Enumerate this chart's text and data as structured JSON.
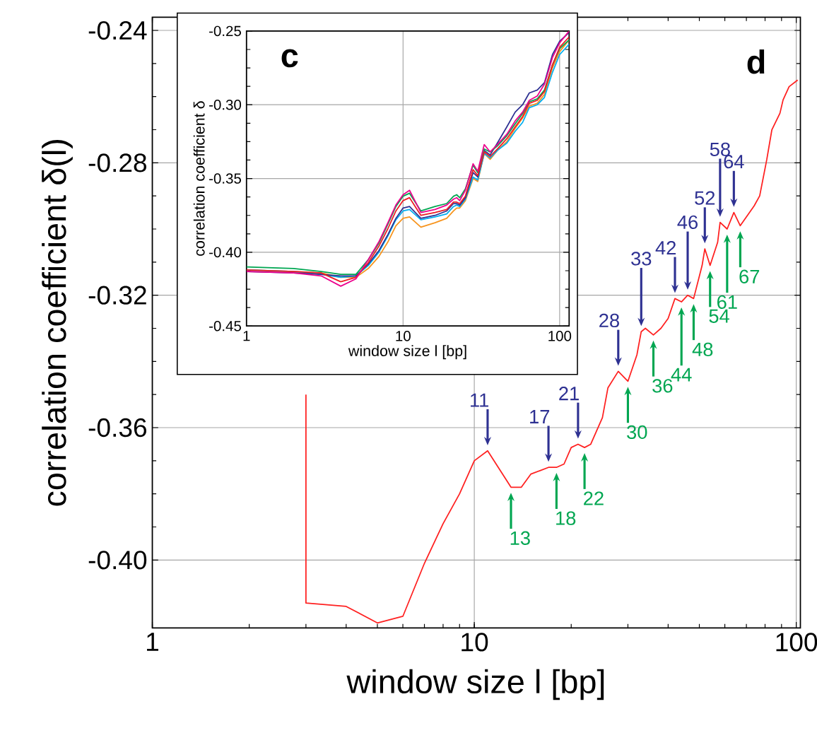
{
  "chart_data": [
    {
      "type": "line",
      "xlabel": "window size l [bp]",
      "ylabel": "correlation coefficient δ(l)",
      "log": "x",
      "grid": true,
      "xlim": [
        1,
        103
      ],
      "ylim": [
        -0.4205,
        -0.236
      ],
      "xticks": [
        1,
        10,
        100
      ],
      "yticks": [
        {
          "value": -0.24,
          "label": "-0.24"
        },
        {
          "value": -0.28,
          "label": "-0.28"
        },
        {
          "value": -0.32,
          "label": "-0.32"
        },
        {
          "value": -0.36,
          "label": "-0.36"
        },
        {
          "value": -0.4,
          "label": "-0.40"
        }
      ],
      "series": [
        {
          "color": "#ff2020",
          "x": [
            3,
            3,
            4,
            5,
            6,
            7,
            8,
            9,
            10,
            11,
            13,
            14,
            15,
            16,
            17,
            18,
            19,
            20,
            21,
            22,
            23,
            25,
            26,
            28,
            30,
            32,
            33,
            34,
            36,
            38,
            40,
            42,
            44,
            46,
            48,
            51,
            52,
            54,
            57,
            58,
            61,
            64,
            67,
            74,
            77,
            81,
            84,
            89,
            91,
            95,
            101
          ],
          "values": [
            -0.35,
            -0.413,
            -0.414,
            -0.419,
            -0.417,
            -0.401,
            -0.389,
            -0.38,
            -0.37,
            -0.367,
            -0.378,
            -0.378,
            -0.374,
            -0.373,
            -0.372,
            -0.372,
            -0.371,
            -0.366,
            -0.365,
            -0.366,
            -0.365,
            -0.357,
            -0.348,
            -0.343,
            -0.346,
            -0.338,
            -0.331,
            -0.33,
            -0.332,
            -0.33,
            -0.327,
            -0.321,
            -0.322,
            -0.32,
            -0.321,
            -0.311,
            -0.306,
            -0.311,
            -0.304,
            -0.298,
            -0.3,
            -0.295,
            -0.299,
            -0.293,
            -0.29,
            -0.279,
            -0.27,
            -0.265,
            -0.261,
            -0.257,
            -0.255
          ]
        }
      ],
      "annotations": [
        "d",
        {
          "text": "11",
          "x": 11,
          "y": -0.367
        },
        {
          "text": "13",
          "x": 13,
          "y": -0.378
        },
        {
          "text": "17",
          "x": 17,
          "y": -0.372
        },
        {
          "text": "18",
          "x": 18,
          "y": -0.372
        },
        {
          "text": "21",
          "x": 21,
          "y": -0.365
        },
        {
          "text": "22",
          "x": 22,
          "y": -0.366
        },
        {
          "text": "28",
          "x": 28,
          "y": -0.343
        },
        {
          "text": "30",
          "x": 30,
          "y": -0.346
        },
        {
          "text": "33",
          "x": 33,
          "y": -0.331
        },
        {
          "text": "36",
          "x": 36,
          "y": -0.332
        },
        {
          "text": "42",
          "x": 42,
          "y": -0.321
        },
        {
          "text": "44",
          "x": 44,
          "y": -0.322
        },
        {
          "text": "46",
          "x": 46,
          "y": -0.32
        },
        {
          "text": "48",
          "x": 48,
          "y": -0.321
        },
        {
          "text": "52",
          "x": 52,
          "y": -0.306
        },
        {
          "text": "54",
          "x": 54,
          "y": -0.311
        },
        {
          "text": "58",
          "x": 58,
          "y": -0.298
        },
        {
          "text": "61",
          "x": 61,
          "y": -0.3
        },
        {
          "text": "64",
          "x": 64,
          "y": -0.295
        },
        {
          "text": "67",
          "x": 67,
          "y": -0.299
        }
      ]
    },
    {
      "type": "line",
      "xlabel": "window size l [bp]",
      "ylabel": "correlation coefficient δ",
      "log": "x",
      "grid": true,
      "xlim": [
        1,
        115
      ],
      "ylim": [
        -0.45,
        -0.25
      ],
      "xticks": [
        1,
        10,
        100
      ],
      "yticks": [
        {
          "value": -0.25,
          "label": "-0.25"
        },
        {
          "value": -0.3,
          "label": "-0.30"
        },
        {
          "value": -0.35,
          "label": "-0.35"
        },
        {
          "value": -0.4,
          "label": "-0.40"
        },
        {
          "value": -0.45,
          "label": "-0.45"
        }
      ],
      "x": [
        1,
        2,
        3,
        4,
        5,
        6,
        7,
        8,
        9,
        10,
        11,
        13,
        16,
        19,
        21,
        22,
        23,
        25,
        28,
        30,
        33,
        36,
        40,
        46,
        52,
        58,
        64,
        72,
        80,
        90,
        100,
        115
      ],
      "series": [
        {
          "color": "#f7941d",
          "values": [
            -0.412,
            -0.413,
            -0.414,
            -0.417,
            -0.417,
            -0.411,
            -0.403,
            -0.393,
            -0.382,
            -0.377,
            -0.376,
            -0.383,
            -0.38,
            -0.377,
            -0.372,
            -0.37,
            -0.37,
            -0.365,
            -0.35,
            -0.352,
            -0.333,
            -0.337,
            -0.331,
            -0.325,
            -0.316,
            -0.309,
            -0.301,
            -0.299,
            -0.293,
            -0.275,
            -0.264,
            -0.256
          ]
        },
        {
          "color": "#00aeef",
          "values": [
            -0.412,
            -0.413,
            -0.415,
            -0.417,
            -0.416,
            -0.409,
            -0.4,
            -0.389,
            -0.378,
            -0.372,
            -0.371,
            -0.378,
            -0.376,
            -0.374,
            -0.369,
            -0.368,
            -0.369,
            -0.364,
            -0.349,
            -0.351,
            -0.333,
            -0.336,
            -0.331,
            -0.326,
            -0.318,
            -0.312,
            -0.302,
            -0.3,
            -0.295,
            -0.278,
            -0.266,
            -0.259
          ]
        },
        {
          "color": "#2e3192",
          "values": [
            -0.413,
            -0.414,
            -0.415,
            -0.416,
            -0.416,
            -0.408,
            -0.399,
            -0.388,
            -0.377,
            -0.37,
            -0.369,
            -0.377,
            -0.375,
            -0.372,
            -0.367,
            -0.367,
            -0.368,
            -0.363,
            -0.346,
            -0.349,
            -0.331,
            -0.334,
            -0.326,
            -0.315,
            -0.305,
            -0.3,
            -0.292,
            -0.29,
            -0.285,
            -0.266,
            -0.257,
            -0.251
          ]
        },
        {
          "color": "#00a651",
          "values": [
            -0.41,
            -0.411,
            -0.413,
            -0.415,
            -0.415,
            -0.405,
            -0.394,
            -0.381,
            -0.369,
            -0.362,
            -0.36,
            -0.372,
            -0.369,
            -0.367,
            -0.362,
            -0.361,
            -0.363,
            -0.357,
            -0.341,
            -0.346,
            -0.33,
            -0.332,
            -0.328,
            -0.321,
            -0.313,
            -0.306,
            -0.298,
            -0.296,
            -0.29,
            -0.273,
            -0.262,
            -0.256
          ]
        },
        {
          "color": "#ed1c24",
          "values": [
            -0.412,
            -0.413,
            -0.414,
            -0.42,
            -0.417,
            -0.407,
            -0.396,
            -0.384,
            -0.372,
            -0.365,
            -0.363,
            -0.375,
            -0.373,
            -0.371,
            -0.366,
            -0.366,
            -0.367,
            -0.362,
            -0.344,
            -0.348,
            -0.332,
            -0.335,
            -0.33,
            -0.323,
            -0.315,
            -0.308,
            -0.299,
            -0.297,
            -0.291,
            -0.273,
            -0.261,
            -0.254
          ]
        },
        {
          "color": "#ec008c",
          "values": [
            -0.413,
            -0.414,
            -0.416,
            -0.423,
            -0.418,
            -0.405,
            -0.393,
            -0.38,
            -0.368,
            -0.361,
            -0.358,
            -0.373,
            -0.371,
            -0.368,
            -0.364,
            -0.363,
            -0.365,
            -0.358,
            -0.34,
            -0.345,
            -0.327,
            -0.332,
            -0.327,
            -0.32,
            -0.311,
            -0.305,
            -0.297,
            -0.294,
            -0.286,
            -0.268,
            -0.258,
            -0.25
          ]
        }
      ],
      "annotations": [
        "c"
      ]
    }
  ]
}
